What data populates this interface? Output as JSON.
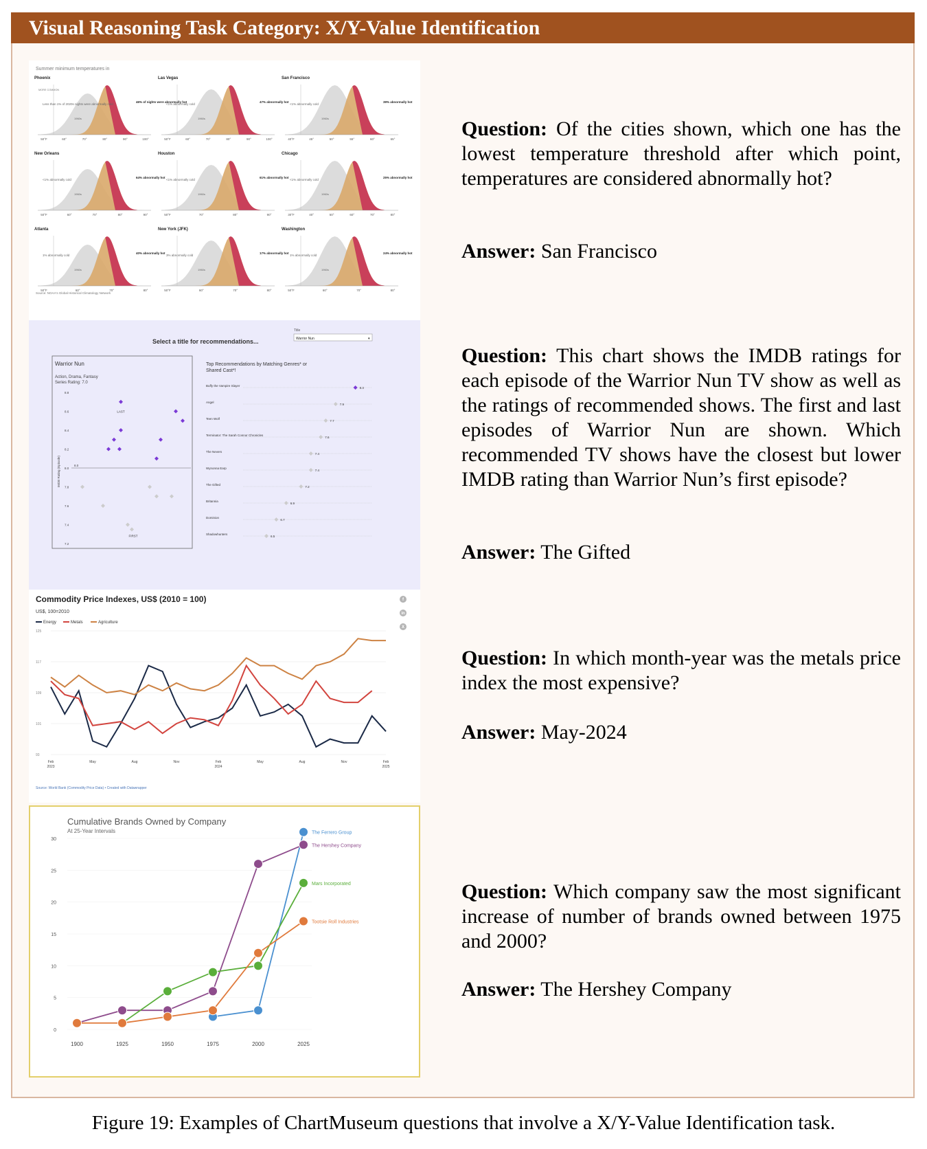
{
  "header": {
    "title": "Visual Reasoning Task Category: X/Y-Value Identification"
  },
  "panels": {
    "p1": {
      "subtitle": "Summer minimum temperatures in",
      "cities": [
        {
          "name": "Phoenix",
          "low": "Less than 1% of 2020s nights were abnormally cold",
          "high": "46% of nights were abnormally hot",
          "ticks": [
            "50°F",
            "60°",
            "70°",
            "80°",
            "90°",
            "100°"
          ]
        },
        {
          "name": "Las Vegas",
          "low": "<1% abnormally cold",
          "high": "47% abnormally hot",
          "ticks": [
            "50°F",
            "60°",
            "70°",
            "80°",
            "90°",
            "100°"
          ]
        },
        {
          "name": "San Francisco",
          "low": "<1% abnormally cold",
          "high": "39% abnormally hot",
          "ticks": [
            "40°F",
            "45°",
            "50°",
            "55°",
            "60°",
            "65°"
          ]
        },
        {
          "name": "New Orleans",
          "low": "<1% abnormally cold",
          "high": "64% abnormally hot",
          "ticks": [
            "50°F",
            "60°",
            "70°",
            "80°",
            "90°"
          ]
        },
        {
          "name": "Houston",
          "low": "<1% abnormally cold",
          "high": "61% abnormally hot",
          "ticks": [
            "50°F",
            "70°",
            "80°",
            "90°"
          ]
        },
        {
          "name": "Chicago",
          "low": "<1% abnormally cold",
          "high": "25% abnormally hot",
          "ticks": [
            "30°F",
            "40°",
            "50°",
            "60°",
            "70°",
            "80°"
          ]
        },
        {
          "name": "Atlanta",
          "low": "1% abnormally cold",
          "high": "40% abnormally hot",
          "ticks": [
            "50°F",
            "60°",
            "70°",
            "80°"
          ]
        },
        {
          "name": "New York (JFK)",
          "low": "3% abnormally cold",
          "high": "17% abnormally hot",
          "ticks": [
            "50°F",
            "60°",
            "70°",
            "80°"
          ]
        },
        {
          "name": "Washington",
          "low": "1% abnormally cold",
          "high": "24% abnormally hot",
          "ticks": [
            "50°F",
            "60°",
            "70°",
            "80°"
          ]
        }
      ],
      "more_common": "MORE COMMON",
      "label_2020s": "2020s",
      "label_1960s": "1960s",
      "source": "Source: NOAA's Global Historical Climatology Network"
    },
    "p2": {
      "select_prompt": "Select a title for recommendations...",
      "title_label": "Title",
      "select_value": "Warrior Nun",
      "left_title": "Warrior Nun",
      "genres": "Action, Drama, Fantasy",
      "series_rating": "Series Rating: 7.0",
      "yaxis_label": "IMDB Rating (Episode)",
      "yticks": [
        "8.8",
        "8.6",
        "8.4",
        "8.2",
        "8.0",
        "7.8",
        "7.6",
        "7.4",
        "7.2"
      ],
      "ref_label": "8.0",
      "last_label": "LAST",
      "first_label": "FIRST",
      "right_title": "Top Recommendations by Matching Genres* or Shared Cast*!",
      "recs": [
        {
          "name": "Buffy the Vampire Slayer",
          "rating": "8.3"
        },
        {
          "name": "Angel",
          "rating": "7.9"
        },
        {
          "name": "Teen Wolf",
          "rating": "7.7"
        },
        {
          "name": "Terminator: The Sarah Connor Chronicles",
          "rating": "7.6"
        },
        {
          "name": "The Nevers",
          "rating": "7.4"
        },
        {
          "name": "Wynonna Earp",
          "rating": "7.4"
        },
        {
          "name": "The Gifted",
          "rating": "7.2"
        },
        {
          "name": "Britannia",
          "rating": "6.9"
        },
        {
          "name": "Dominion",
          "rating": "6.7"
        },
        {
          "name": "Shadowhunters",
          "rating": "6.5"
        }
      ]
    },
    "p3": {
      "title": "Commodity Price Indexes, US$ (2010 = 100)",
      "subtitle": "US$, 100=2010",
      "source": "Source: World Bank (Commodity Price Data) • Created with Datawrapper",
      "x_labels": [
        "Feb 2023",
        "May",
        "Aug",
        "Nov",
        "Feb 2024",
        "May",
        "Aug",
        "Nov",
        "Feb 2025"
      ],
      "yticks": [
        "125",
        "117",
        "109",
        "101",
        "93"
      ],
      "social_icons": [
        "facebook-icon",
        "linkedin-icon",
        "x-icon"
      ]
    },
    "p4": {
      "title": "Cumulative Brands Owned by Company",
      "subtitle": "At 25-Year Intervals"
    }
  },
  "qa": [
    {
      "q_label": "Question:",
      "question": "Of the cities shown, which one has the lowest temperature threshold after which point, temperatures are considered abnormally hot?",
      "a_label": "Answer:",
      "answer": "San Francisco"
    },
    {
      "q_label": "Question:",
      "question": "This chart shows the IMDB ratings for each episode of the Warrior Nun TV show as well as the ratings of recommended shows. The first and last episodes of Warrior Nun are shown. Which recommended TV shows have the closest but lower IMDB rating than Warrior Nun’s first episode?",
      "a_label": "Answer:",
      "answer": "The Gifted"
    },
    {
      "q_label": "Question:",
      "question": "In which month-year was the metals price index the most expensive?",
      "a_label": "Answer:",
      "answer": "May-2024"
    },
    {
      "q_label": "Question:",
      "question": "Which company saw the most significant increase of number of brands owned between 1975 and 2000?",
      "a_label": "Answer:",
      "answer": "The Hershey Company"
    }
  ],
  "caption": "Figure 19: Examples of ChartMuseum questions that involve a X/Y-Value Identification task.",
  "chart_data": [
    {
      "type": "line",
      "title": "Commodity Price Indexes, US$ (2010 = 100)",
      "ylabel": "US$, 100=2010",
      "ylim": [
        93,
        125
      ],
      "x": [
        "Feb 2023",
        "Mar 2023",
        "Apr 2023",
        "May 2023",
        "Jun 2023",
        "Jul 2023",
        "Aug 2023",
        "Sep 2023",
        "Oct 2023",
        "Nov 2023",
        "Dec 2023",
        "Jan 2024",
        "Feb 2024",
        "Mar 2024",
        "Apr 2024",
        "May 2024",
        "Jun 2024",
        "Jul 2024",
        "Aug 2024",
        "Sep 2024",
        "Oct 2024",
        "Nov 2024",
        "Dec 2024",
        "Jan 2025",
        "Feb 2025"
      ],
      "series": [
        {
          "name": "Energy",
          "color": "#1b2a47",
          "values": [
            110.5,
            103.5,
            109.5,
            96.5,
            95,
            101,
            107.5,
            116,
            114.5,
            106,
            100,
            101.5,
            102.5,
            105,
            111,
            103,
            104,
            106,
            103,
            95,
            97,
            96,
            96,
            103,
            99
          ]
        },
        {
          "name": "Metals",
          "color": "#d2443e",
          "values": [
            112,
            108.5,
            107.5,
            100.5,
            101,
            101.5,
            99.5,
            101.5,
            98.5,
            101,
            102.5,
            102,
            100.5,
            107,
            116,
            111,
            107.5,
            103.5,
            106,
            112,
            107.5,
            106.5,
            106.5,
            109.5,
            null
          ]
        },
        {
          "name": "Agriculture",
          "color": "#cd8243",
          "values": [
            113,
            110.5,
            113.5,
            111,
            109,
            109.5,
            108.5,
            111,
            109.5,
            111.5,
            110,
            109.5,
            111,
            114,
            118,
            116,
            116,
            114,
            112.5,
            116,
            117,
            119,
            123,
            122.5,
            122.5
          ]
        }
      ],
      "legend": "top-left"
    },
    {
      "type": "line",
      "title": "Cumulative Brands Owned by Company",
      "subtitle": "At 25-Year Intervals",
      "x": [
        1900,
        1925,
        1950,
        1975,
        2000,
        2025
      ],
      "ylim": [
        0,
        30
      ],
      "series": [
        {
          "name": "The Ferrero Group",
          "color": "#4a90d0",
          "values": [
            null,
            null,
            null,
            2,
            3,
            31
          ]
        },
        {
          "name": "The Hershey Company",
          "color": "#8e4c8c",
          "values": [
            1,
            3,
            3,
            6,
            26,
            29
          ]
        },
        {
          "name": "Mars Incorporated",
          "color": "#5aae3a",
          "values": [
            null,
            1,
            6,
            9,
            10,
            23
          ]
        },
        {
          "name": "Tootsie Roll Industries",
          "color": "#e07a3c",
          "values": [
            1,
            1,
            2,
            3,
            12,
            17
          ]
        }
      ]
    },
    {
      "type": "scatter",
      "title": "Warrior Nun",
      "ylabel": "IMDB Rating (Episode)",
      "ylim": [
        7.2,
        8.8
      ],
      "series": [
        {
          "name": "Episodes",
          "values": [
            7.8,
            7.6,
            7.4,
            7.35,
            8.7,
            8.6,
            8.5,
            8.4,
            8.3,
            8.2,
            8.2,
            8.1,
            7.8,
            7.7,
            8.3,
            7.7,
            8.6,
            8.4
          ]
        }
      ]
    }
  ]
}
